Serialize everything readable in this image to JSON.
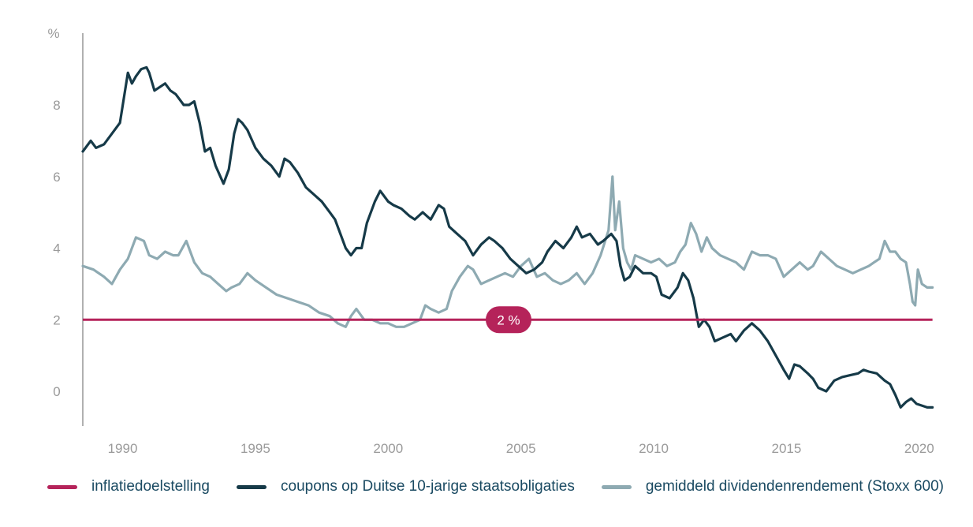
{
  "chart_data": {
    "type": "line",
    "y_unit": "%",
    "xlim": [
      1988.5,
      2020.6
    ],
    "ylim": [
      -1.0,
      10.0
    ],
    "x_ticks": [
      1990,
      1995,
      2000,
      2005,
      2010,
      2015,
      2020
    ],
    "y_ticks": [
      0,
      2,
      4,
      6,
      8
    ],
    "grid": false,
    "legend_position": "bottom",
    "target_label": "2 %",
    "series": [
      {
        "name": "inflatiedoelstelling",
        "color": "#b5235a",
        "x": [
          1988.5,
          2020.5
        ],
        "y": [
          2.0,
          2.0
        ]
      },
      {
        "name": "coupons op Duitse 10-jarige staatsobligaties",
        "color": "#163a48",
        "x": [
          1988.5,
          1988.8,
          1989.0,
          1989.3,
          1989.6,
          1989.9,
          1990.2,
          1990.35,
          1990.5,
          1990.7,
          1990.9,
          1991.0,
          1991.2,
          1991.4,
          1991.6,
          1991.8,
          1992.0,
          1992.3,
          1992.5,
          1992.7,
          1992.9,
          1993.1,
          1993.3,
          1993.5,
          1993.8,
          1994.0,
          1994.2,
          1994.35,
          1994.5,
          1994.7,
          1995.0,
          1995.3,
          1995.6,
          1995.9,
          1996.1,
          1996.3,
          1996.6,
          1996.9,
          1997.2,
          1997.5,
          1997.8,
          1998.0,
          1998.2,
          1998.4,
          1998.6,
          1998.8,
          1999.0,
          1999.2,
          1999.5,
          1999.7,
          2000.0,
          2000.2,
          2000.5,
          2000.8,
          2001.0,
          2001.3,
          2001.6,
          2001.9,
          2002.1,
          2002.3,
          2002.6,
          2002.9,
          2003.2,
          2003.5,
          2003.8,
          2004.0,
          2004.3,
          2004.6,
          2004.9,
          2005.2,
          2005.5,
          2005.8,
          2006.0,
          2006.3,
          2006.6,
          2006.9,
          2007.1,
          2007.3,
          2007.6,
          2007.9,
          2008.1,
          2008.4,
          2008.6,
          2008.75,
          2008.9,
          2009.1,
          2009.3,
          2009.6,
          2009.9,
          2010.1,
          2010.3,
          2010.6,
          2010.9,
          2011.1,
          2011.3,
          2011.5,
          2011.7,
          2011.9,
          2012.1,
          2012.3,
          2012.6,
          2012.9,
          2013.1,
          2013.4,
          2013.7,
          2014.0,
          2014.3,
          2014.6,
          2014.9,
          2015.1,
          2015.3,
          2015.5,
          2015.8,
          2016.0,
          2016.2,
          2016.5,
          2016.8,
          2017.1,
          2017.4,
          2017.7,
          2017.9,
          2018.1,
          2018.4,
          2018.7,
          2018.9,
          2019.1,
          2019.3,
          2019.5,
          2019.7,
          2019.9,
          2020.1,
          2020.3,
          2020.5
        ],
        "y": [
          6.7,
          7.0,
          6.8,
          6.9,
          7.2,
          7.5,
          8.9,
          8.6,
          8.8,
          9.0,
          9.05,
          8.9,
          8.4,
          8.5,
          8.6,
          8.4,
          8.3,
          8.0,
          8.0,
          8.1,
          7.5,
          6.7,
          6.8,
          6.3,
          5.8,
          6.2,
          7.2,
          7.6,
          7.5,
          7.3,
          6.8,
          6.5,
          6.3,
          6.0,
          6.5,
          6.4,
          6.1,
          5.7,
          5.5,
          5.3,
          5.0,
          4.8,
          4.4,
          4.0,
          3.8,
          4.0,
          4.0,
          4.7,
          5.3,
          5.6,
          5.3,
          5.2,
          5.1,
          4.9,
          4.8,
          5.0,
          4.8,
          5.2,
          5.1,
          4.6,
          4.4,
          4.2,
          3.8,
          4.1,
          4.3,
          4.2,
          4.0,
          3.7,
          3.5,
          3.3,
          3.4,
          3.6,
          3.9,
          4.2,
          4.0,
          4.3,
          4.6,
          4.3,
          4.4,
          4.1,
          4.2,
          4.4,
          4.2,
          3.5,
          3.1,
          3.2,
          3.5,
          3.3,
          3.3,
          3.2,
          2.7,
          2.6,
          2.9,
          3.3,
          3.1,
          2.6,
          1.8,
          2.0,
          1.8,
          1.4,
          1.5,
          1.6,
          1.4,
          1.7,
          1.9,
          1.7,
          1.4,
          1.0,
          0.6,
          0.35,
          0.75,
          0.7,
          0.5,
          0.35,
          0.1,
          0.0,
          0.3,
          0.4,
          0.45,
          0.5,
          0.6,
          0.55,
          0.5,
          0.3,
          0.2,
          -0.1,
          -0.45,
          -0.3,
          -0.2,
          -0.35,
          -0.4,
          -0.45,
          -0.45
        ]
      },
      {
        "name": "gemiddeld dividendenrendement (Stoxx 600)",
        "color": "#8eaab2",
        "x": [
          1988.5,
          1988.9,
          1989.3,
          1989.6,
          1989.9,
          1990.2,
          1990.5,
          1990.8,
          1991.0,
          1991.3,
          1991.6,
          1991.9,
          1992.1,
          1992.4,
          1992.7,
          1993.0,
          1993.3,
          1993.6,
          1993.9,
          1994.1,
          1994.4,
          1994.7,
          1995.0,
          1995.4,
          1995.8,
          1996.2,
          1996.6,
          1997.0,
          1997.4,
          1997.8,
          1998.1,
          1998.4,
          1998.6,
          1998.8,
          1999.1,
          1999.4,
          1999.7,
          2000.0,
          2000.3,
          2000.6,
          2000.9,
          2001.2,
          2001.4,
          2001.6,
          2001.9,
          2002.2,
          2002.4,
          2002.7,
          2003.0,
          2003.2,
          2003.5,
          2003.8,
          2004.1,
          2004.4,
          2004.7,
          2005.0,
          2005.3,
          2005.6,
          2005.9,
          2006.2,
          2006.5,
          2006.8,
          2007.1,
          2007.4,
          2007.7,
          2008.0,
          2008.3,
          2008.45,
          2008.55,
          2008.7,
          2008.85,
          2009.0,
          2009.15,
          2009.3,
          2009.6,
          2009.9,
          2010.2,
          2010.5,
          2010.8,
          2011.0,
          2011.2,
          2011.4,
          2011.6,
          2011.8,
          2012.0,
          2012.2,
          2012.5,
          2012.8,
          2013.1,
          2013.4,
          2013.7,
          2014.0,
          2014.3,
          2014.6,
          2014.9,
          2015.2,
          2015.5,
          2015.8,
          2016.0,
          2016.3,
          2016.6,
          2016.9,
          2017.2,
          2017.5,
          2017.8,
          2018.1,
          2018.3,
          2018.5,
          2018.7,
          2018.9,
          2019.1,
          2019.3,
          2019.5,
          2019.65,
          2019.75,
          2019.85,
          2019.95,
          2020.1,
          2020.3,
          2020.5
        ],
        "y": [
          3.5,
          3.4,
          3.2,
          3.0,
          3.4,
          3.7,
          4.3,
          4.2,
          3.8,
          3.7,
          3.9,
          3.8,
          3.8,
          4.2,
          3.6,
          3.3,
          3.2,
          3.0,
          2.8,
          2.9,
          3.0,
          3.3,
          3.1,
          2.9,
          2.7,
          2.6,
          2.5,
          2.4,
          2.2,
          2.1,
          1.9,
          1.8,
          2.1,
          2.3,
          2.0,
          2.0,
          1.9,
          1.9,
          1.8,
          1.8,
          1.9,
          2.0,
          2.4,
          2.3,
          2.2,
          2.3,
          2.8,
          3.2,
          3.5,
          3.4,
          3.0,
          3.1,
          3.2,
          3.3,
          3.2,
          3.5,
          3.7,
          3.2,
          3.3,
          3.1,
          3.0,
          3.1,
          3.3,
          3.0,
          3.3,
          3.8,
          4.5,
          6.0,
          4.5,
          5.3,
          4.0,
          3.6,
          3.4,
          3.8,
          3.7,
          3.6,
          3.7,
          3.5,
          3.6,
          3.9,
          4.1,
          4.7,
          4.4,
          3.9,
          4.3,
          4.0,
          3.8,
          3.7,
          3.6,
          3.4,
          3.9,
          3.8,
          3.8,
          3.7,
          3.2,
          3.4,
          3.6,
          3.4,
          3.5,
          3.9,
          3.7,
          3.5,
          3.4,
          3.3,
          3.4,
          3.5,
          3.6,
          3.7,
          4.2,
          3.9,
          3.9,
          3.7,
          3.6,
          3.0,
          2.5,
          2.4,
          3.4,
          3.0,
          2.9,
          2.9
        ]
      }
    ]
  }
}
